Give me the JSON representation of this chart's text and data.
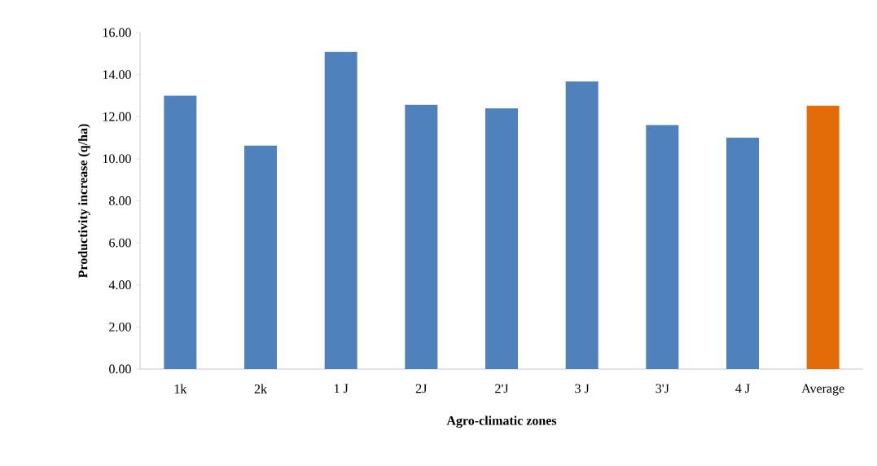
{
  "chart_data": {
    "type": "bar",
    "xlabel": "Agro-climatic zones",
    "ylabel": "Productivity increase (q/ha)",
    "categories": [
      "1k",
      "2k",
      "1 J",
      "2J",
      "2'J",
      "3 J",
      "3'J",
      "4 J",
      "Average"
    ],
    "values": [
      13.0,
      10.62,
      15.08,
      12.56,
      12.4,
      13.68,
      11.6,
      11.0,
      12.52
    ],
    "colors": [
      "#4f81bd",
      "#4f81bd",
      "#4f81bd",
      "#4f81bd",
      "#4f81bd",
      "#4f81bd",
      "#4f81bd",
      "#4f81bd",
      "#e36c09"
    ],
    "ylim": [
      0,
      16
    ],
    "yticks": [
      {
        "value": 0,
        "label": "0.00"
      },
      {
        "value": 2,
        "label": "2.00"
      },
      {
        "value": 4,
        "label": "4.00"
      },
      {
        "value": 6,
        "label": "6.00"
      },
      {
        "value": 8,
        "label": "8.00"
      },
      {
        "value": 10,
        "label": "10.00"
      },
      {
        "value": 12,
        "label": "12.00"
      },
      {
        "value": 14,
        "label": "14.00"
      },
      {
        "value": 16,
        "label": "16.00"
      }
    ],
    "grid": false
  }
}
